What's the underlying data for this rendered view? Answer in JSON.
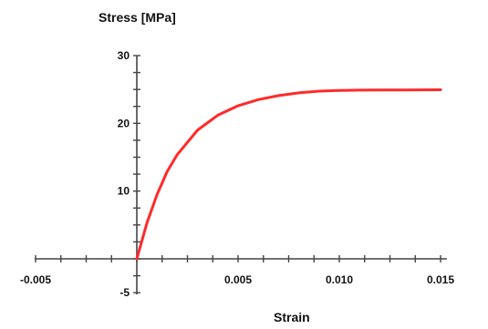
{
  "chart_data": {
    "type": "line",
    "title": "",
    "xlabel": "Strain",
    "ylabel": "Stress [MPa]",
    "xlim": [
      -0.005,
      0.015
    ],
    "ylim": [
      -5,
      30
    ],
    "x_ticks": [
      -0.005,
      0,
      0.005,
      0.01,
      0.015
    ],
    "x_tick_labels": [
      "-0.005",
      "",
      "0.005",
      "0.010",
      "0.015"
    ],
    "x_minor_step": 0.00125,
    "y_ticks": [
      -5,
      0,
      10,
      20,
      30
    ],
    "y_tick_labels": [
      "-5",
      "",
      "10",
      "20",
      "30"
    ],
    "y_minor_step": 2.5,
    "grid": false,
    "series": [
      {
        "color": "#ff2a2a",
        "x": [
          0,
          0.0005,
          0.001,
          0.0015,
          0.002,
          0.003,
          0.004,
          0.005,
          0.006,
          0.007,
          0.008,
          0.009,
          0.01,
          0.011,
          0.012,
          0.013,
          0.015
        ],
        "y": [
          0,
          5.3,
          9.5,
          12.9,
          15.4,
          19.0,
          21.2,
          22.6,
          23.5,
          24.1,
          24.5,
          24.75,
          24.85,
          24.9,
          24.92,
          24.93,
          24.95
        ]
      }
    ]
  }
}
